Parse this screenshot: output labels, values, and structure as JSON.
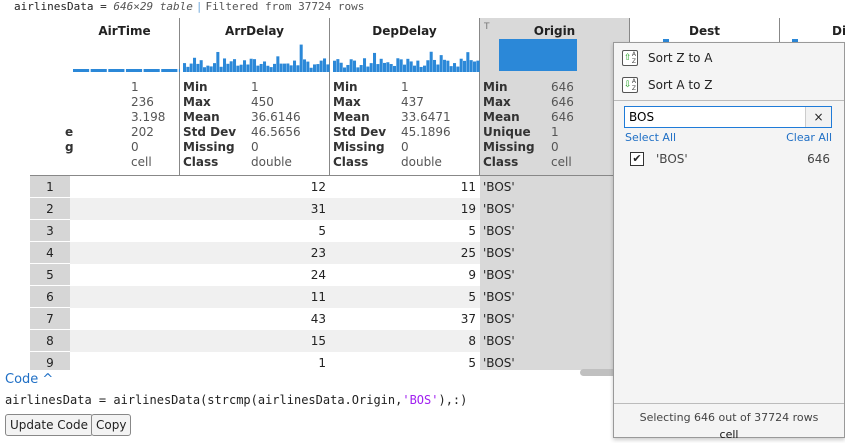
{
  "title": {
    "var": "airlinesData = ",
    "size": "646×29 table",
    "filter": "Filtered from 37724 rows"
  },
  "columns": [
    {
      "name": "AirTime",
      "stats": [
        [
          "",
          "1"
        ],
        [
          "",
          "236"
        ],
        [
          "",
          "3.198"
        ],
        [
          "e",
          "202"
        ],
        [
          "g",
          "0"
        ],
        [
          "",
          "cell"
        ]
      ]
    },
    {
      "name": "ArrDelay",
      "stats": [
        [
          "Min",
          "1"
        ],
        [
          "Max",
          "450"
        ],
        [
          "Mean",
          "36.6146"
        ],
        [
          "Std Dev",
          "46.5656"
        ],
        [
          "Missing",
          "0"
        ],
        [
          "Class",
          "double"
        ]
      ]
    },
    {
      "name": "DepDelay",
      "stats": [
        [
          "Min",
          "1"
        ],
        [
          "Max",
          "437"
        ],
        [
          "Mean",
          "33.6471"
        ],
        [
          "Std Dev",
          "45.1896"
        ],
        [
          "Missing",
          "0"
        ],
        [
          "Class",
          "double"
        ]
      ]
    },
    {
      "name": "Origin",
      "stats": [
        [
          "Min",
          "646"
        ],
        [
          "Max",
          "646"
        ],
        [
          "Mean",
          "646"
        ],
        [
          "Unique",
          "1"
        ],
        [
          "Missing",
          "0"
        ],
        [
          "Class",
          "cell"
        ]
      ]
    },
    {
      "name": "Dest",
      "stats": []
    },
    {
      "name": "Dis",
      "stats": []
    }
  ],
  "rows": [
    {
      "n": "1",
      "arr": "12",
      "dep": "11",
      "origin": "'BOS'"
    },
    {
      "n": "2",
      "arr": "31",
      "dep": "19",
      "origin": "'BOS'"
    },
    {
      "n": "3",
      "arr": "5",
      "dep": "5",
      "origin": "'BOS'"
    },
    {
      "n": "4",
      "arr": "23",
      "dep": "25",
      "origin": "'BOS'"
    },
    {
      "n": "5",
      "arr": "24",
      "dep": "9",
      "origin": "'BOS'"
    },
    {
      "n": "6",
      "arr": "11",
      "dep": "5",
      "origin": "'BOS'"
    },
    {
      "n": "7",
      "arr": "43",
      "dep": "37",
      "origin": "'BOS'"
    },
    {
      "n": "8",
      "arr": "15",
      "dep": "8",
      "origin": "'BOS'"
    },
    {
      "n": "9",
      "arr": "1",
      "dep": "5",
      "origin": "'BOS'"
    }
  ],
  "code": {
    "label": "Code ^",
    "line_pre": "airlinesData = airlinesData(strcmp(airlinesData.Origin,",
    "line_str": "'BOS'",
    "line_post": "),:)",
    "update": "Update Code",
    "copy": "Copy"
  },
  "popup": {
    "sort_za": "Sort Z to A",
    "sort_az": "Sort A to Z",
    "search_value": "BOS",
    "clear_icon": "×",
    "select_all": "Select All",
    "clear_all": "Clear All",
    "item_label": "'BOS'",
    "item_count": "646",
    "item_checked": true,
    "footer": "Selecting 646 out of 37724 rows",
    "footer_class": "cell"
  },
  "colors": {
    "accent": "#1f6fc5",
    "histogram": "#2b88d8",
    "selected_column": "#d9d9d9"
  }
}
